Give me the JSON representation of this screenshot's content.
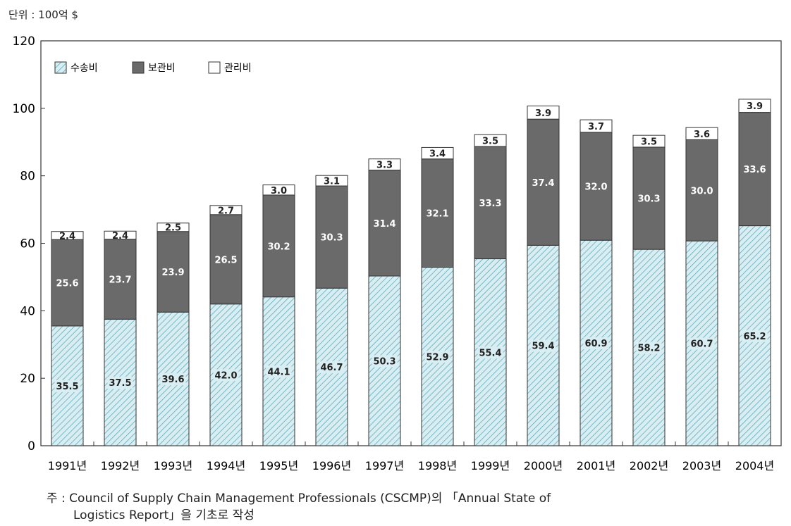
{
  "unit_label": "단위 : 100억 $",
  "note": {
    "line1": "주 : Council of Supply Chain Management Professionals (CSCMP)의 「Annual State of",
    "line2": "Logistics Report」을 기초로 작성"
  },
  "colors": {
    "transport": "#d8eef2",
    "hatch": "#5aa7b7",
    "storage": "#6a6a6a",
    "admin": "#ffffff"
  },
  "chart_data": {
    "type": "bar",
    "stacked": true,
    "ylim": [
      0,
      120
    ],
    "yticks": [
      0,
      20,
      40,
      60,
      80,
      100,
      120
    ],
    "categories": [
      "1991년",
      "1992년",
      "1993년",
      "1994년",
      "1995년",
      "1996년",
      "1997년",
      "1998년",
      "1999년",
      "2000년",
      "2001년",
      "2002년",
      "2003년",
      "2004년"
    ],
    "legend_position": "top-left",
    "series": [
      {
        "name": "수송비",
        "values": [
          35.5,
          37.5,
          39.6,
          42.0,
          44.1,
          46.7,
          50.3,
          52.9,
          55.4,
          59.4,
          60.9,
          58.2,
          60.7,
          65.2
        ]
      },
      {
        "name": "보관비",
        "values": [
          25.6,
          23.7,
          23.9,
          26.5,
          30.2,
          30.3,
          31.4,
          32.1,
          33.3,
          37.4,
          32.0,
          30.3,
          30.0,
          33.6
        ]
      },
      {
        "name": "관리비",
        "values": [
          2.4,
          2.4,
          2.5,
          2.7,
          3.0,
          3.1,
          3.3,
          3.4,
          3.5,
          3.9,
          3.7,
          3.5,
          3.6,
          3.9
        ]
      }
    ]
  }
}
